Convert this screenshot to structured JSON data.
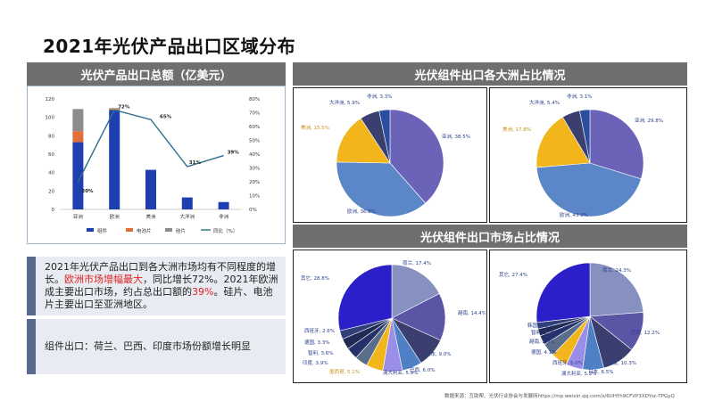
{
  "slide_title": "2021年光伏产品出口区域分布",
  "panels": {
    "export_total": "光伏产品出口总额（亿美元）",
    "continent_share": "光伏组件出口各大洲占比情况",
    "market_share": "光伏组件出口市场占比情况"
  },
  "text_block": {
    "p1_a": "2021年光伏产品出口到各大洲市场均有不同程度的增长。",
    "p1_red": "欧洲市场增幅最大",
    "p1_b": "，同比增长72%。2021年欧洲成主要出口市场，约占总出口额的",
    "p1_red2": "39%",
    "p1_c": "。硅片、电池片主要出口至亚洲地区。",
    "p2": "组件出口：荷兰、巴西、印度市场份额增长明显"
  },
  "source": "数据来源：互助帮、光伏行业协会与发展网https://mp.weixin.qq.com/s/6UHYh9CFVP3XDYsc-TPGyQ",
  "colors": {
    "module": "#1f3fb0",
    "cell": "#e0703a",
    "wafer": "#8c8c8c",
    "yoy_line": "#2f6e8f",
    "header": "#6f6f6f"
  },
  "chart_data": [
    {
      "type": "bar",
      "title": "光伏产品出口总额（亿美元）",
      "categories": [
        "亚洲",
        "欧洲",
        "美洲",
        "大洋洲",
        "非洲"
      ],
      "stacked": true,
      "series": [
        {
          "name": "组件",
          "values": [
            73,
            108,
            43,
            13,
            8
          ]
        },
        {
          "name": "电池片",
          "values": [
            12,
            1,
            0,
            0,
            0
          ]
        },
        {
          "name": "硅片",
          "values": [
            24,
            1,
            0,
            0,
            0
          ]
        }
      ],
      "line_series": {
        "name": "同比（%）",
        "axis": "right",
        "values": [
          20,
          72,
          65,
          31,
          39
        ],
        "labels": [
          "20%",
          "72%",
          "65%",
          "31%",
          "39%"
        ]
      },
      "ylim": [
        0,
        120
      ],
      "yticks": [
        0,
        20,
        40,
        60,
        80,
        100,
        120
      ],
      "y2lim": [
        0,
        80
      ],
      "y2ticks": [
        "0%",
        "10%",
        "20%",
        "30%",
        "40%",
        "50%",
        "60%",
        "70%",
        "80%"
      ],
      "legend": "bottom"
    },
    {
      "type": "pie",
      "labels": [
        "亚洲",
        "欧洲",
        "美洲",
        "大洋洲",
        "非洲"
      ],
      "values": [
        38.5,
        36.8,
        15.5,
        5.9,
        3.3
      ],
      "value_labels": [
        "亚洲, 38.5%",
        "欧洲, 36.8%",
        "美洲, 15.5%",
        "大洋洲, 5.9%",
        "非洲, 3.3%"
      ],
      "colors": [
        "#6a63b8",
        "#5b86c8",
        "#f2b51c",
        "#3a3f6f",
        "#2b4fa0"
      ]
    },
    {
      "type": "pie",
      "labels": [
        "亚洲",
        "欧洲",
        "美洲",
        "大洋洲",
        "非洲"
      ],
      "values": [
        29.8,
        43.9,
        17.8,
        5.4,
        3.1
      ],
      "value_labels": [
        "亚洲, 29.8%",
        "欧洲, 43.9%",
        "美洲, 17.8%",
        "大洋洲, 5.4%",
        "非洲, 3.1%"
      ],
      "colors": [
        "#6a63b8",
        "#5b86c8",
        "#f2b51c",
        "#3a3f6f",
        "#2b4fa0"
      ]
    },
    {
      "type": "pie",
      "labels": [
        "荷兰",
        "越南",
        "日本",
        "巴西",
        "澳大利亚",
        "墨西哥",
        "印度",
        "智利",
        "德国",
        "西班牙",
        "其它"
      ],
      "values": [
        17.4,
        14.4,
        9.0,
        6.0,
        5.9,
        5.1,
        3.9,
        3.6,
        3.3,
        2.6,
        28.8
      ],
      "value_labels": [
        "荷兰, 17.4%",
        "越南, 14.4%",
        "日本, 9.0%",
        "巴西, 6.0%",
        "澳大利亚, 5.9%",
        "墨西哥, 5.1%",
        "印度, 3.9%",
        "智利, 3.6%",
        "德国, 3.3%",
        "西班牙, 2.6%",
        "其它, 28.8%"
      ],
      "colors": [
        "#8791bf",
        "#5b55a6",
        "#3a3f6f",
        "#4f7fc4",
        "#9b8ee8",
        "#f2b51c",
        "#5a6d8a",
        "#26306b",
        "#1f2a55",
        "#2f3f7a",
        "#2a1fc8"
      ]
    },
    {
      "type": "pie",
      "labels": [
        "荷兰",
        "巴西",
        "印度",
        "日本",
        "澳大利亚",
        "西班牙",
        "德国",
        "越南",
        "智利",
        "韩国",
        "其它"
      ],
      "values": [
        24.3,
        12.2,
        10.3,
        6.5,
        5.2,
        5.0,
        4.1,
        2.9,
        2.2,
        2.0,
        27.4
      ],
      "value_labels": [
        "荷兰, 24.3%",
        "巴西, 12.2%",
        "印度, 10.3%",
        "日本, 6.5%",
        "澳大利亚, 5.2%",
        "西班牙, 5.0%",
        "德国, 4.1%",
        "越南, 2.9%",
        "智利, 2.2%",
        "韩国, 2.0%",
        "其它, 27.4%"
      ],
      "colors": [
        "#8791bf",
        "#5b55a6",
        "#3a3f6f",
        "#4f7fc4",
        "#9b8ee8",
        "#f2b51c",
        "#5a6d8a",
        "#26306b",
        "#1f2a55",
        "#2f3f7a",
        "#2a1fc8"
      ]
    }
  ]
}
